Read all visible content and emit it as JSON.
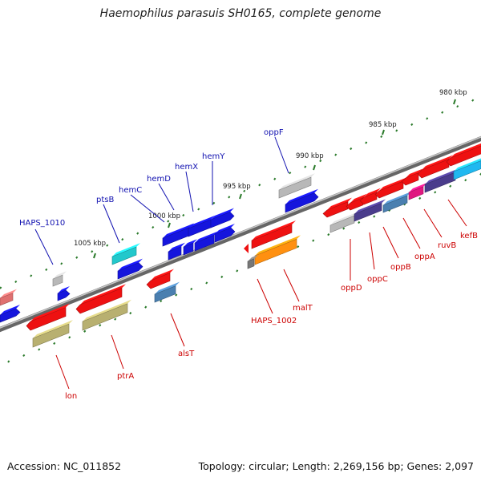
{
  "title": "Haemophilus parasuis SH0165, complete genome",
  "footer": {
    "accession": "Accession: NC_011852",
    "summary": "Topology: circular; Length: 2,269,156 bp; Genes: 2,097"
  },
  "ruler": {
    "ticks": [
      {
        "label": "980 kbp"
      },
      {
        "label": "985 kbp"
      },
      {
        "label": "990 kbp"
      },
      {
        "label": "995 kbp"
      },
      {
        "label": "1000 kbp"
      },
      {
        "label": "1005 kbp"
      }
    ]
  },
  "gene_labels": {
    "forward": [
      "HAPS_1010",
      "ptsB",
      "hemC",
      "hemD",
      "hemX",
      "hemY",
      "oppF"
    ],
    "reverse": [
      "lon",
      "ptrA",
      "alsT",
      "HAPS_1002",
      "malT",
      "oppD",
      "oppC",
      "oppB",
      "oppA",
      "ruvB",
      "kefB"
    ]
  },
  "colors": {
    "forward_label": "#1010b0",
    "reverse_label": "#cc0000",
    "red": "#ee1111",
    "blue": "#1515dd",
    "olive": "#b8b070",
    "gray": "#b8b8b8",
    "cyan": "#22c8cc",
    "steel": "#4a7fb0",
    "orange": "#ff9010",
    "purple": "#4a3c8c",
    "magenta": "#e01880",
    "sky": "#20b8f0",
    "salmon": "#e07070",
    "backbone": "#888888",
    "tick": "#2a7a2a"
  }
}
